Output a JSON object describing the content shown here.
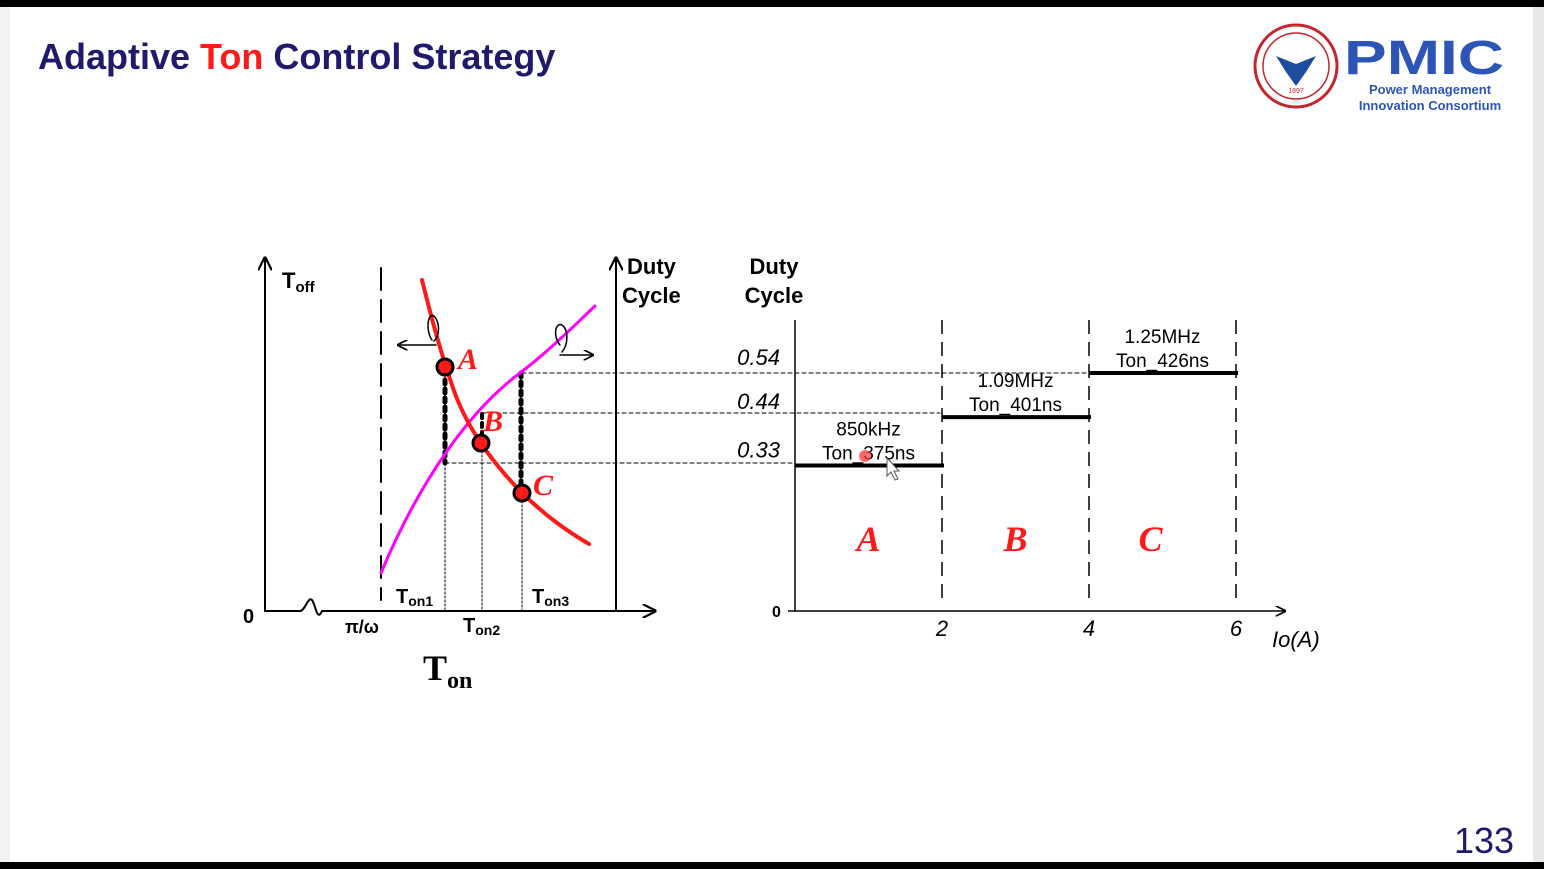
{
  "slide": {
    "title_part1": "Adaptive ",
    "title_highlight": "Ton",
    "title_part2": " Control Strategy",
    "page_number": "133",
    "colors": {
      "title": "#1f1a6b",
      "highlight": "#ff1a1a",
      "curve_toff": "#ff1a1a",
      "curve_duty": "#ff00ff"
    }
  },
  "logo": {
    "university": "ZHEJIANG UNIVERSITY",
    "year": "1897",
    "brand": "PMIC",
    "brand_line1": "Power Management",
    "brand_line2": "Innovation Consortium"
  },
  "left_diagram": {
    "y_axis_label_main": "T",
    "y_axis_label_sub": "off",
    "right_axis_label_line1": "Duty",
    "right_axis_label_line2": "Cycle",
    "origin": "0",
    "x_tick_pi": "π/ω",
    "x_axis_label_main": "T",
    "x_axis_label_sub": "on",
    "ton_labels": [
      {
        "main": "T",
        "sub": "on1"
      },
      {
        "main": "T",
        "sub": "on2"
      },
      {
        "main": "T",
        "sub": "on3"
      }
    ],
    "points": [
      "A",
      "B",
      "C"
    ]
  },
  "chart_data": {
    "type": "line",
    "ylabel": "Duty Cycle",
    "xlabel": "Io(A)",
    "x_ticks": [
      "2",
      "4",
      "6"
    ],
    "y_ticks": [
      "0.33",
      "0.44",
      "0.54"
    ],
    "origin": "0",
    "xlim": [
      0,
      6
    ],
    "ylim": [
      0,
      0.6
    ],
    "segments": [
      {
        "region": "A",
        "x_start": 0,
        "x_end": 2,
        "duty": 0.33,
        "freq": "850kHz",
        "ton": "Ton_375ns"
      },
      {
        "region": "B",
        "x_start": 2,
        "x_end": 4,
        "duty": 0.44,
        "freq": "1.09MHz",
        "ton": "Ton_401ns"
      },
      {
        "region": "C",
        "x_start": 4,
        "x_end": 6,
        "duty": 0.54,
        "freq": "1.25MHz",
        "ton": "Ton_426ns"
      }
    ]
  }
}
